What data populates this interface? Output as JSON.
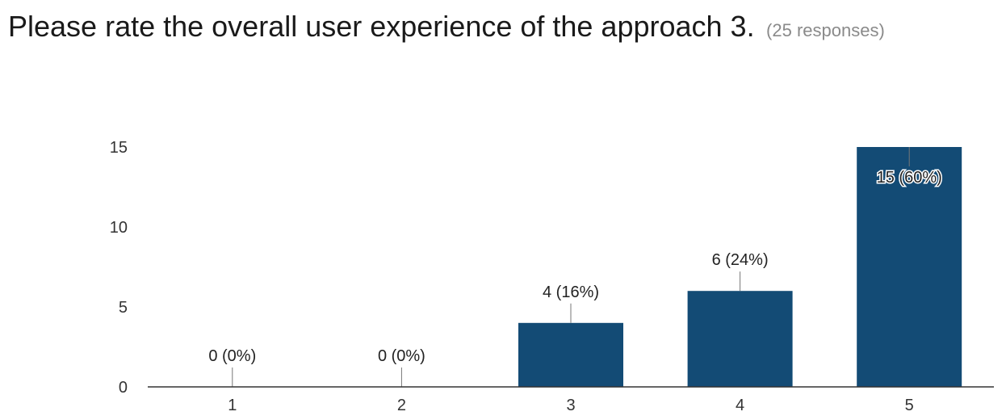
{
  "header": {
    "title": "Please rate the overall user experience of the approach 3.",
    "responses": "(25 responses)"
  },
  "colors": {
    "bar": "#134b75",
    "axis": "#333333",
    "leader": "#777777"
  },
  "chart_data": {
    "type": "bar",
    "categories": [
      "1",
      "2",
      "3",
      "4",
      "5"
    ],
    "values": [
      0,
      0,
      4,
      6,
      15
    ],
    "data_labels": [
      "0 (0%)",
      "0 (0%)",
      "4 (16%)",
      "6 (24%)",
      "15 (60%)"
    ],
    "y_ticks": [
      0,
      5,
      10,
      15
    ],
    "ylim": [
      0,
      15
    ],
    "grid": false,
    "legend": "none"
  }
}
